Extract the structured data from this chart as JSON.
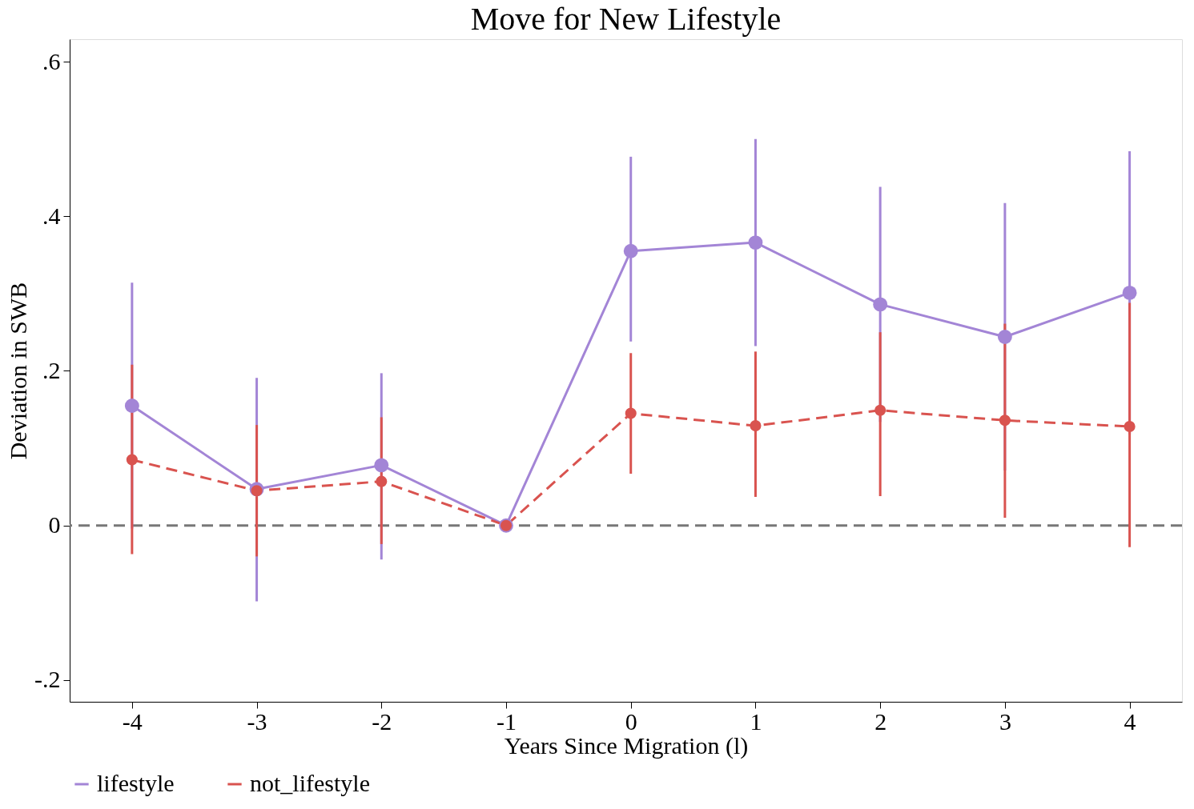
{
  "chart_data": {
    "type": "line",
    "title": "Move for New Lifestyle",
    "xlabel": "Years Since Migration (l)",
    "ylabel": "Deviation in SWB",
    "x": [
      -4,
      -3,
      -2,
      -1,
      0,
      1,
      2,
      3,
      4
    ],
    "series": [
      {
        "name": "lifestyle",
        "color": "#a385d6",
        "line_style": "solid",
        "values": [
          0.155,
          0.047,
          0.078,
          0,
          0.355,
          0.366,
          0.286,
          0.244,
          0.301
        ],
        "errors": [
          [
            -0.004,
            0.314
          ],
          [
            -0.098,
            0.191
          ],
          [
            -0.044,
            0.197
          ],
          null,
          [
            0.238,
            0.477
          ],
          [
            0.232,
            0.5
          ],
          [
            0.134,
            0.438
          ],
          [
            0.071,
            0.417
          ],
          [
            0.118,
            0.484
          ]
        ]
      },
      {
        "name": "not_lifestyle",
        "color": "#d9534f",
        "line_style": "dashed",
        "values": [
          0.085,
          0.045,
          0.057,
          0,
          0.145,
          0.129,
          0.149,
          0.136,
          0.128
        ],
        "errors": [
          [
            -0.037,
            0.208
          ],
          [
            -0.04,
            0.13
          ],
          [
            -0.024,
            0.14
          ],
          null,
          [
            0.067,
            0.223
          ],
          [
            0.037,
            0.225
          ],
          [
            0.038,
            0.25
          ],
          [
            0.01,
            0.261
          ],
          [
            -0.028,
            0.288
          ]
        ]
      }
    ],
    "xlim": [
      -4.5,
      4.42
    ],
    "ylim": [
      -0.228,
      0.629
    ],
    "xticks": [
      -4,
      -3,
      -2,
      -1,
      0,
      1,
      2,
      3,
      4
    ],
    "yticks": [
      {
        "value": -0.2,
        "label": "-.2"
      },
      {
        "value": 0,
        "label": "0"
      },
      {
        "value": 0.2,
        "label": ".2"
      },
      {
        "value": 0.4,
        "label": ".4"
      },
      {
        "value": 0.6,
        "label": ".6"
      }
    ],
    "ref_lines": [
      {
        "axis": "y",
        "value": 0,
        "color": "#777777",
        "line_style": "dashed"
      }
    ],
    "grid": false,
    "legend": "bottom",
    "marker": "circle"
  }
}
